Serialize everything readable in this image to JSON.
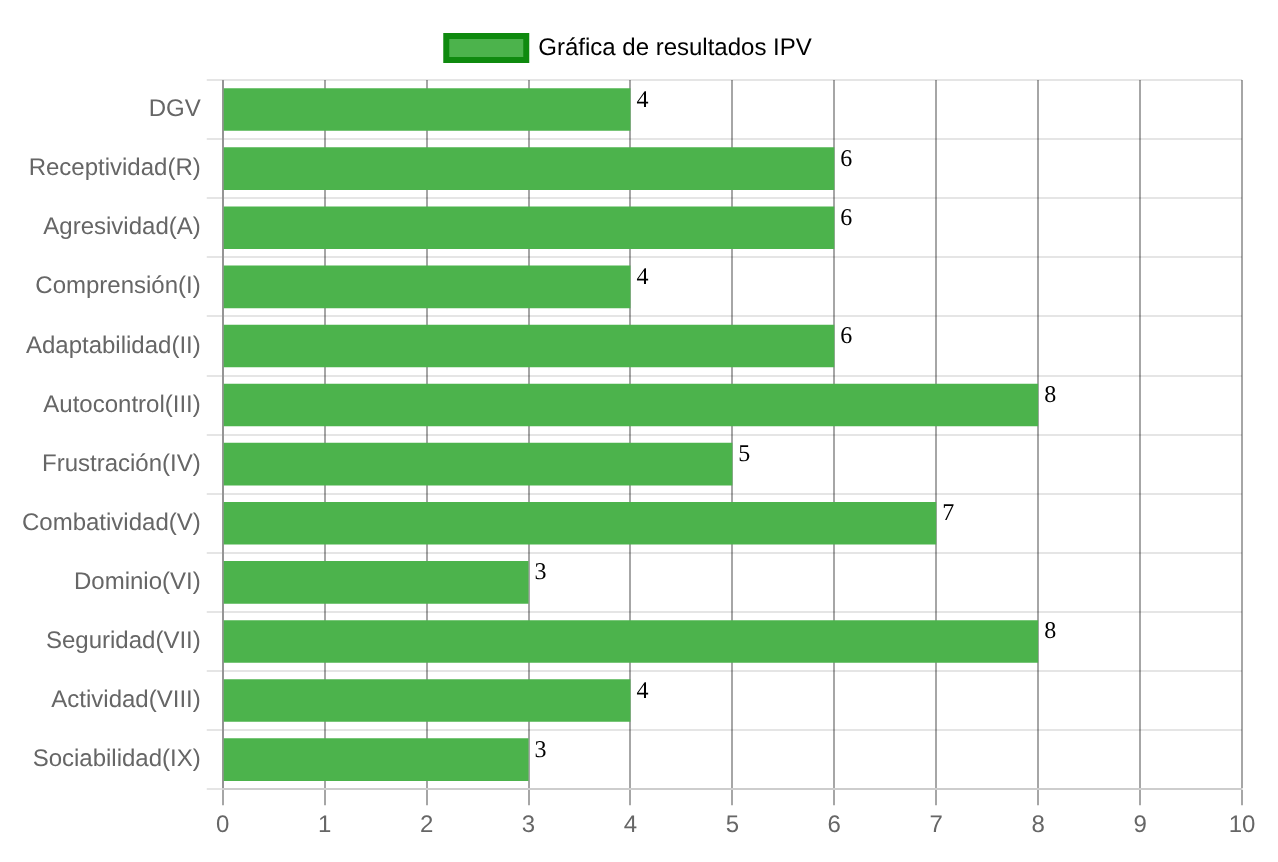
{
  "chart_data": {
    "type": "bar",
    "orientation": "horizontal",
    "categories": [
      "DGV",
      "Receptividad(R)",
      "Agresividad(A)",
      "Comprensión(I)",
      "Adaptabilidad(II)",
      "Autocontrol(III)",
      "Frustración(IV)",
      "Combatividad(V)",
      "Dominio(VI)",
      "Seguridad(VII)",
      "Actividad(VIII)",
      "Sociabilidad(IX)"
    ],
    "series": [
      {
        "name": "Gráfica de resultados IPV",
        "color": "#4cb34c",
        "values": [
          4,
          6,
          6,
          4,
          6,
          8,
          5,
          7,
          3,
          8,
          4,
          3
        ]
      }
    ],
    "xlim": [
      0,
      10
    ],
    "xticks": [
      0,
      1,
      2,
      3,
      4,
      5,
      6,
      7,
      8,
      9,
      10
    ],
    "grid": true,
    "legend": "top",
    "data_labels": true
  }
}
